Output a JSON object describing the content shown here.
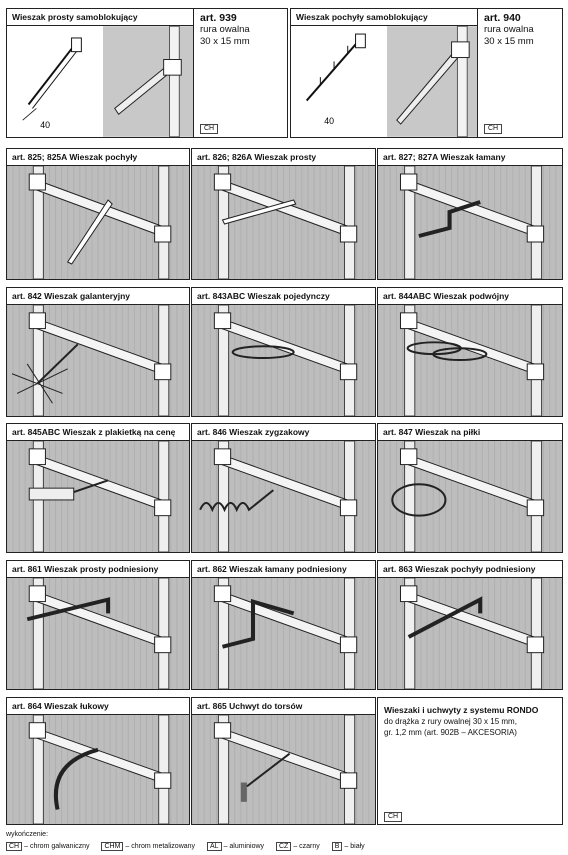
{
  "top": [
    {
      "label": "Wieszak prosty samoblokujący",
      "art": "art. 939",
      "desc1": "rura owalna",
      "desc2": "30 x 15 mm",
      "tag": "CH",
      "dim": "40"
    },
    {
      "label": "Wieszak pochyły samoblokujący",
      "art": "art. 940",
      "desc1": "rura owalna",
      "desc2": "30 x 15 mm",
      "tag": "CH",
      "dim": "40"
    }
  ],
  "cells": [
    {
      "label": "art. 825; 825A Wieszak pochyły",
      "kind": "slanted"
    },
    {
      "label": "art. 826; 826A Wieszak prosty",
      "kind": "straight"
    },
    {
      "label": "art. 827; 827A Wieszak łamany",
      "kind": "broken"
    },
    {
      "label": "art. 842 Wieszak galanteryjny",
      "kind": "galanteria"
    },
    {
      "label": "art. 843ABC Wieszak pojedynczy",
      "kind": "single"
    },
    {
      "label": "art. 844ABC Wieszak podwójny",
      "kind": "double"
    },
    {
      "label": "art. 845ABC Wieszak z plakietką na cenę",
      "kind": "plate"
    },
    {
      "label": "art. 846 Wieszak zygzakowy",
      "kind": "zigzag"
    },
    {
      "label": "art. 847 Wieszak na piłki",
      "kind": "ring"
    },
    {
      "label": "art. 861 Wieszak prosty podniesiony",
      "kind": "raised"
    },
    {
      "label": "art. 862 Wieszak łamany podniesiony",
      "kind": "raisedbroken"
    },
    {
      "label": "art. 863 Wieszak pochyły podniesiony",
      "kind": "raisedslanted"
    },
    {
      "label": "art. 864 Wieszak łukowy",
      "kind": "arc"
    },
    {
      "label": "art. 865 Uchwyt do torsów",
      "kind": "torso"
    }
  ],
  "info": {
    "title": "Wieszaki i uchwyty z systemu RONDO",
    "line1": "do drążka z rury owalnej 30 x 15 mm,",
    "line2": "gr. 1,2 mm (art. 902B – AKCESORIA)",
    "tag": "CH"
  },
  "legend": {
    "heading": "wykończenie:",
    "items": [
      {
        "code": "CH",
        "text": "– chrom galwaniczny"
      },
      {
        "code": "CHM",
        "text": "– chrom metalizowany"
      },
      {
        "code": "AL",
        "text": "– aluminiowy"
      },
      {
        "code": "CZ",
        "text": "– czarny"
      },
      {
        "code": "B",
        "text": "– biały"
      }
    ]
  }
}
